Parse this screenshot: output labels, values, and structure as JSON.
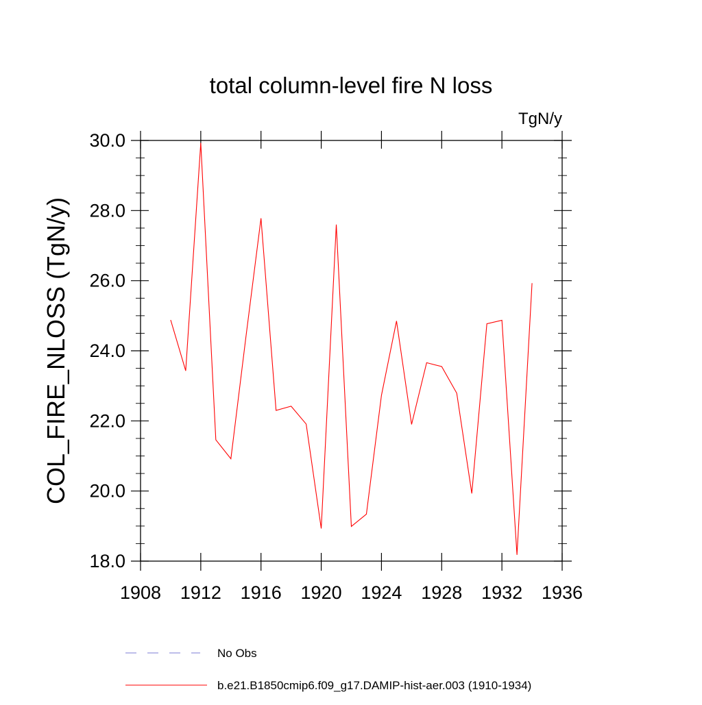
{
  "chart_data": {
    "type": "line",
    "title": "total column-level fire N loss",
    "units_label": "TgN/y",
    "ylabel": "COL_FIRE_NLOSS  (TgN/y)",
    "xlabel": "",
    "xlim": [
      1908,
      1936
    ],
    "ylim": [
      18,
      30
    ],
    "x_ticks": [
      1908,
      1912,
      1916,
      1920,
      1924,
      1928,
      1932,
      1936
    ],
    "x_tick_labels": [
      "1908",
      "1912",
      "1916",
      "1920",
      "1924",
      "1928",
      "1932",
      "1936"
    ],
    "y_ticks": [
      18,
      20,
      22,
      24,
      26,
      28,
      30
    ],
    "y_tick_labels": [
      "18.0",
      "20.0",
      "22.0",
      "24.0",
      "26.0",
      "28.0",
      "30.0"
    ],
    "grid": false,
    "legend_position": "bottom",
    "series": [
      {
        "name": "b.e21.B1850cmip6.f09_g17.DAMIP-hist-aer.003 (1910-1934)",
        "color": "#ff0000",
        "style": "solid",
        "x": [
          1910,
          1911,
          1912,
          1913,
          1914,
          1915,
          1916,
          1917,
          1918,
          1919,
          1920,
          1921,
          1922,
          1923,
          1924,
          1925,
          1926,
          1927,
          1928,
          1929,
          1930,
          1931,
          1932,
          1933,
          1934
        ],
        "values": [
          24.88,
          23.43,
          29.93,
          21.46,
          20.92,
          24.4,
          27.78,
          22.3,
          22.42,
          21.91,
          18.93,
          27.6,
          18.99,
          19.34,
          22.73,
          24.85,
          21.9,
          23.66,
          23.55,
          22.79,
          19.93,
          24.77,
          24.87,
          18.18,
          25.93
        ]
      }
    ],
    "legend": [
      {
        "label": "No Obs",
        "color": "#7b7bd6",
        "style": "dashed"
      },
      {
        "label": "b.e21.B1850cmip6.f09_g17.DAMIP-hist-aer.003 (1910-1934)",
        "color": "#ff0000",
        "style": "solid"
      }
    ]
  }
}
